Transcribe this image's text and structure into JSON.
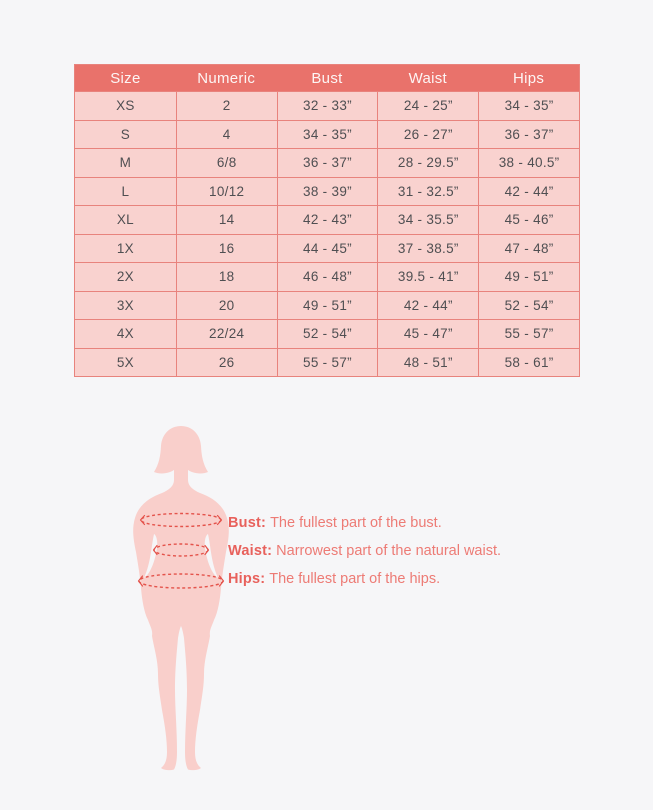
{
  "chart_data": {
    "type": "table",
    "title": "",
    "columns": [
      "Size",
      "Numeric",
      "Bust",
      "Waist",
      "Hips"
    ],
    "rows": [
      [
        "XS",
        "2",
        "32 - 33”",
        "24 - 25”",
        "34 - 35”"
      ],
      [
        "S",
        "4",
        "34 - 35”",
        "26 - 27”",
        "36 - 37”"
      ],
      [
        "M",
        "6/8",
        "36 - 37”",
        "28 - 29.5”",
        "38 - 40.5”"
      ],
      [
        "L",
        "10/12",
        "38 - 39”",
        "31 - 32.5”",
        "42 - 44”"
      ],
      [
        "XL",
        "14",
        "42 - 43”",
        "34 - 35.5”",
        "45 - 46”"
      ],
      [
        "1X",
        "16",
        "44 - 45”",
        "37 - 38.5”",
        "47 - 48”"
      ],
      [
        "2X",
        "18",
        "46 - 48”",
        "39.5 - 41”",
        "49 - 51”"
      ],
      [
        "3X",
        "20",
        "49 - 51”",
        "42 - 44”",
        "52 - 54”"
      ],
      [
        "4X",
        "22/24",
        "52 - 54”",
        "45 - 47”",
        "55 - 57”"
      ],
      [
        "5X",
        "26",
        "55 - 57”",
        "48 - 51”",
        "58 - 61”"
      ]
    ]
  },
  "measurement_guide": {
    "figure": "female-body-silhouette-with-dashed-measurement-lines",
    "items": [
      {
        "label": "Bust:",
        "description": "The fullest part of the bust."
      },
      {
        "label": "Waist:",
        "description": "Narrowest part of the natural waist."
      },
      {
        "label": "Hips:",
        "description": "The fullest part of the hips."
      }
    ]
  },
  "colors": {
    "page_background": "#f6f6f8",
    "header_background": "#e9726b",
    "header_text": "#fdf5f4",
    "row_background": "#f9d2cf",
    "table_border": "#e8837d",
    "cell_text": "#4f4f52",
    "silhouette_fill": "#f9cfcb",
    "measure_dash": "#e4534b",
    "caption_label": "#e8615c",
    "caption_text": "#ed7b75"
  }
}
